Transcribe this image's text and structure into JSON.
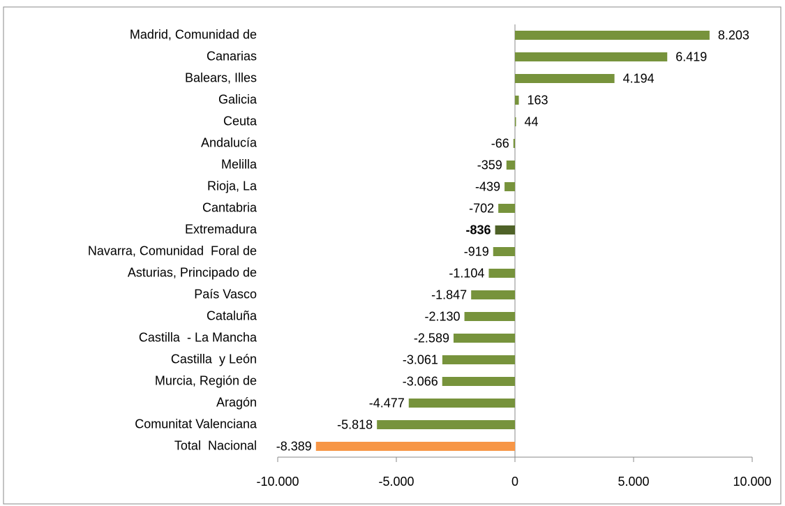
{
  "chart_data": {
    "type": "hbar",
    "categories": [
      "Madrid, Comunidad de",
      "Canarias",
      "Balears, Illes",
      "Galicia",
      "Ceuta",
      "Andalucía",
      "Melilla",
      "Rioja, La",
      "Cantabria",
      "Extremadura",
      "Navarra, Comunidad  Foral de",
      "Asturias, Principado de",
      "País Vasco",
      "Cataluña",
      "Castilla  - La Mancha",
      "Castilla  y León",
      "Murcia, Región de",
      "Aragón",
      "Comunitat Valenciana",
      "Total  Nacional"
    ],
    "values": [
      8203,
      6419,
      4194,
      163,
      44,
      -66,
      -359,
      -439,
      -702,
      -836,
      -919,
      -1104,
      -1847,
      -2130,
      -2589,
      -3061,
      -3066,
      -4477,
      -5818,
      -8389
    ],
    "value_labels": [
      "8.203",
      "6.419",
      "4.194",
      "163",
      "44",
      "-66",
      "-359",
      "-439",
      "-702",
      "-836",
      "-919",
      "-1.104",
      "-1.847",
      "-2.130",
      "-2.589",
      "-3.061",
      "-3.066",
      "-4.477",
      "-5.818",
      "-8.389"
    ],
    "colors": [
      "#77933c",
      "#77933c",
      "#77933c",
      "#77933c",
      "#77933c",
      "#77933c",
      "#77933c",
      "#77933c",
      "#77933c",
      "#4f6228",
      "#77933c",
      "#77933c",
      "#77933c",
      "#77933c",
      "#77933c",
      "#77933c",
      "#77933c",
      "#77933c",
      "#77933c",
      "#f79646"
    ],
    "bold_value_label_index": 9,
    "xlim": [
      -10000,
      10000
    ],
    "xticks": [
      {
        "value": -10000,
        "label": "-10.000"
      },
      {
        "value": -5000,
        "label": "-5.000"
      },
      0,
      {
        "value": 5000,
        "label": "5.000"
      },
      {
        "value": 10000,
        "label": "10.000"
      }
    ]
  }
}
